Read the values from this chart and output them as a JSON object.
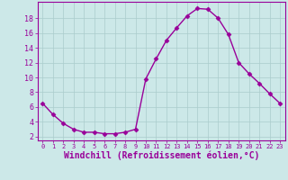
{
  "x": [
    0,
    1,
    2,
    3,
    4,
    5,
    6,
    7,
    8,
    9,
    10,
    11,
    12,
    13,
    14,
    15,
    16,
    17,
    18,
    19,
    20,
    21,
    22,
    23
  ],
  "y": [
    6.5,
    5.0,
    3.8,
    3.0,
    2.6,
    2.6,
    2.4,
    2.4,
    2.6,
    3.0,
    9.8,
    12.5,
    15.0,
    16.7,
    18.3,
    19.3,
    19.2,
    18.0,
    15.8,
    12.0,
    10.5,
    9.2,
    7.8,
    6.5
  ],
  "line_color": "#990099",
  "marker": "D",
  "markersize": 2.5,
  "linewidth": 1.0,
  "xlabel": "Windchill (Refroidissement éolien,°C)",
  "xlabel_fontsize": 7,
  "ylabel_ticks": [
    2,
    4,
    6,
    8,
    10,
    12,
    14,
    16,
    18
  ],
  "xlim": [
    -0.5,
    23.5
  ],
  "ylim": [
    1.5,
    20.2
  ],
  "bg_color": "#cce8e8",
  "grid_color": "#aacccc",
  "tick_label_color": "#990099",
  "spine_color": "#990099",
  "xlabel_color": "#990099"
}
